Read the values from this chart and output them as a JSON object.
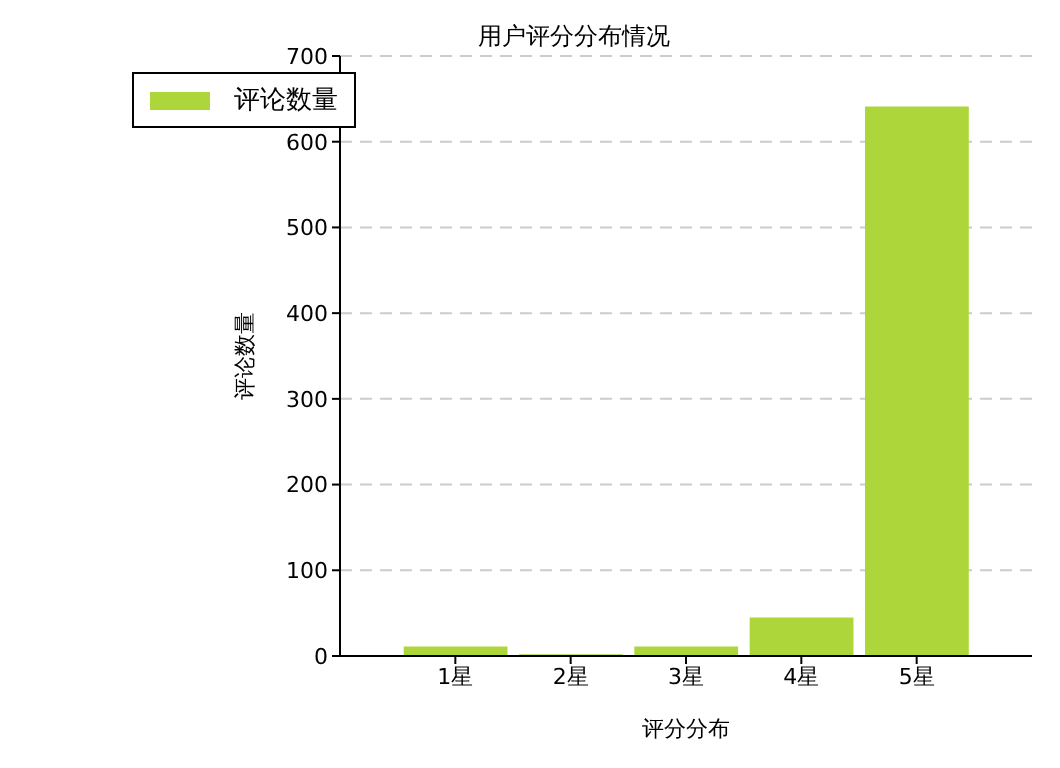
{
  "chart_data": {
    "type": "bar",
    "title": "用户评分分布情况",
    "xlabel": "评分分布",
    "ylabel": "评论数量",
    "categories": [
      "1星",
      "2星",
      "3星",
      "4星",
      "5星"
    ],
    "series": [
      {
        "name": "评论数量",
        "color": "#acd63a",
        "values": [
          11,
          2,
          11,
          45,
          641
        ]
      }
    ],
    "ylim": [
      0,
      700
    ],
    "yticks": [
      0,
      100,
      200,
      300,
      400,
      500,
      600,
      700
    ],
    "grid": "y",
    "legend": "top left"
  }
}
